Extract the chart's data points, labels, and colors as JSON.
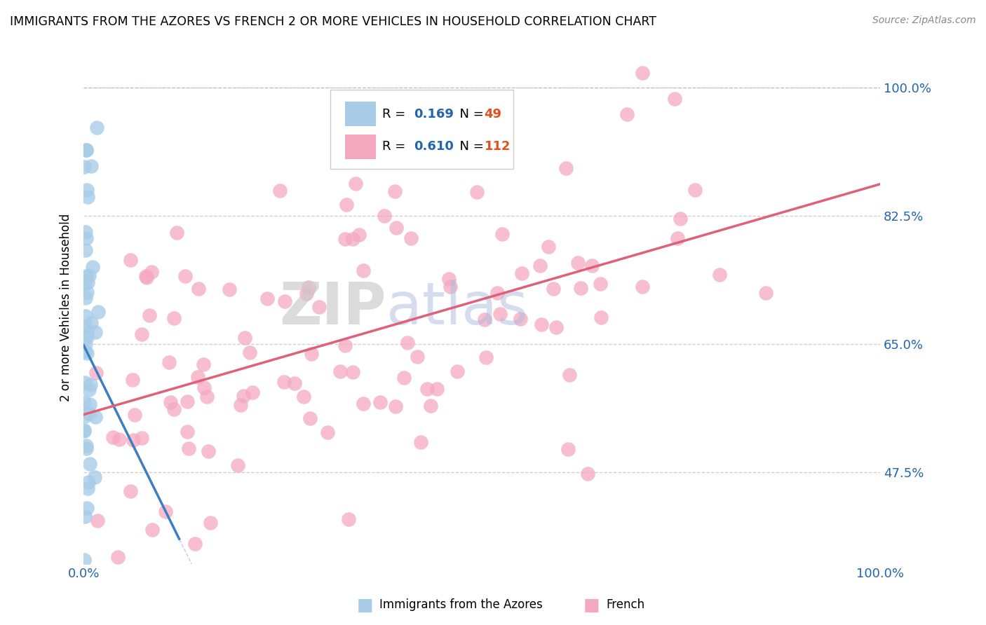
{
  "title": "IMMIGRANTS FROM THE AZORES VS FRENCH 2 OR MORE VEHICLES IN HOUSEHOLD CORRELATION CHART",
  "source": "Source: ZipAtlas.com",
  "ylabel": "2 or more Vehicles in Household",
  "ytick_labels": [
    "47.5%",
    "65.0%",
    "82.5%",
    "100.0%"
  ],
  "ytick_values": [
    0.475,
    0.65,
    0.825,
    1.0
  ],
  "legend_blue_r": "0.169",
  "legend_blue_n": "49",
  "legend_pink_r": "0.610",
  "legend_pink_n": "112",
  "legend_label_blue": "Immigrants from the Azores",
  "legend_label_pink": "French",
  "blue_color": "#a8cce8",
  "pink_color": "#f4a8be",
  "blue_line_color": "#3a7fc1",
  "pink_line_color": "#e0607a",
  "blue_r": 0.169,
  "pink_r": 0.61,
  "xlim": [
    0.0,
    1.0
  ],
  "ylim": [
    0.35,
    1.05
  ],
  "grid_color": "#cccccc",
  "background_color": "#ffffff",
  "accent_color": "#2166ac",
  "n_color": "#e05020"
}
